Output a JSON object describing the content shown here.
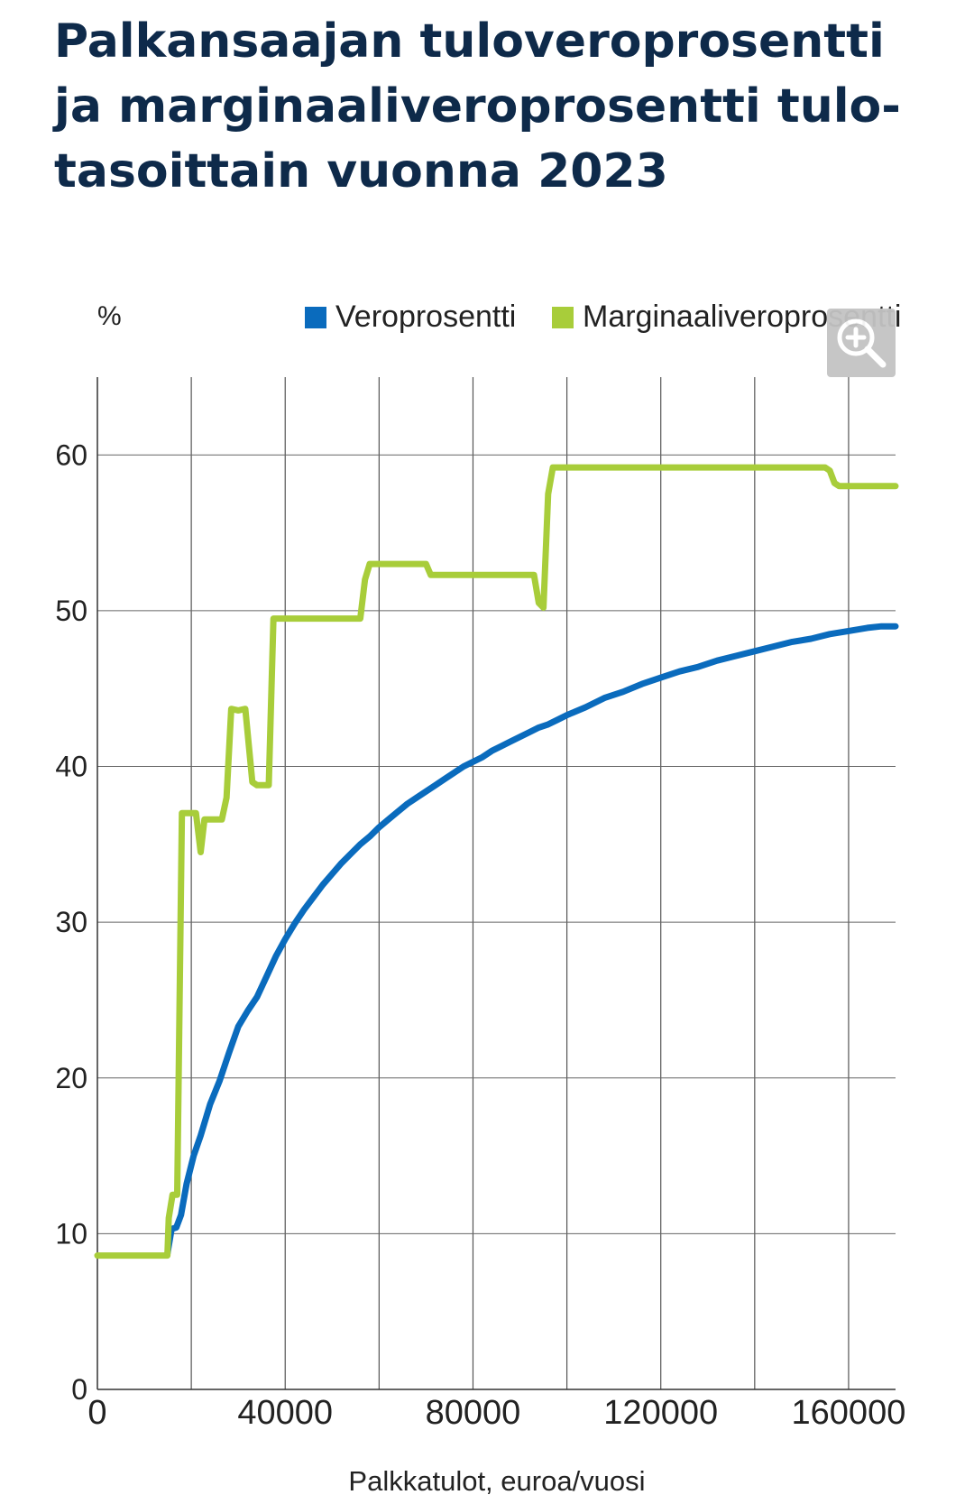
{
  "header": {
    "title": "Palkansaajan tuloveroprosentti ja marginaaliveroprosentti tulo- tasoittain vuonna 2023"
  },
  "chart_data": {
    "type": "line",
    "title": "Palkansaajan tuloveroprosentti ja marginaaliveroprosentti tulo- tasoittain vuonna 2023",
    "xlabel": "Palkkatulot, euroa/vuosi",
    "ylabel": "%",
    "xlim": [
      0,
      170000
    ],
    "ylim": [
      0,
      65
    ],
    "xticks": [
      0,
      40000,
      80000,
      120000,
      160000
    ],
    "yticks": [
      0,
      10,
      20,
      30,
      40,
      50,
      60
    ],
    "grid": true,
    "legend_position": "top-right",
    "series": [
      {
        "name": "Veroprosentti",
        "color": "#0a6bbd",
        "points": [
          [
            14900,
            8.7
          ],
          [
            15800,
            10.3
          ],
          [
            16800,
            10.4
          ],
          [
            17800,
            11.2
          ],
          [
            19000,
            13.2
          ],
          [
            20500,
            15.0
          ],
          [
            22000,
            16.3
          ],
          [
            24000,
            18.3
          ],
          [
            26000,
            19.8
          ],
          [
            28000,
            21.6
          ],
          [
            30000,
            23.3
          ],
          [
            32000,
            24.3
          ],
          [
            34000,
            25.2
          ],
          [
            36000,
            26.5
          ],
          [
            38000,
            27.8
          ],
          [
            40000,
            28.9
          ],
          [
            42000,
            29.9
          ],
          [
            44000,
            30.8
          ],
          [
            46000,
            31.6
          ],
          [
            48000,
            32.4
          ],
          [
            50000,
            33.1
          ],
          [
            52000,
            33.8
          ],
          [
            54000,
            34.4
          ],
          [
            56000,
            35.0
          ],
          [
            58000,
            35.5
          ],
          [
            60000,
            36.1
          ],
          [
            62000,
            36.6
          ],
          [
            64000,
            37.1
          ],
          [
            66000,
            37.6
          ],
          [
            68000,
            38.0
          ],
          [
            70000,
            38.4
          ],
          [
            72000,
            38.8
          ],
          [
            74000,
            39.2
          ],
          [
            76000,
            39.6
          ],
          [
            78000,
            40.0
          ],
          [
            80000,
            40.3
          ],
          [
            82000,
            40.6
          ],
          [
            84000,
            41.0
          ],
          [
            86000,
            41.3
          ],
          [
            88000,
            41.6
          ],
          [
            90000,
            41.9
          ],
          [
            92000,
            42.2
          ],
          [
            94000,
            42.5
          ],
          [
            96000,
            42.7
          ],
          [
            98000,
            43.0
          ],
          [
            100000,
            43.3
          ],
          [
            104000,
            43.8
          ],
          [
            108000,
            44.4
          ],
          [
            112000,
            44.8
          ],
          [
            116000,
            45.3
          ],
          [
            120000,
            45.7
          ],
          [
            124000,
            46.1
          ],
          [
            128000,
            46.4
          ],
          [
            132000,
            46.8
          ],
          [
            136000,
            47.1
          ],
          [
            140000,
            47.4
          ],
          [
            144000,
            47.7
          ],
          [
            148000,
            48.0
          ],
          [
            152000,
            48.2
          ],
          [
            156000,
            48.5
          ],
          [
            160000,
            48.7
          ],
          [
            164000,
            48.9
          ],
          [
            167000,
            49.0
          ],
          [
            170000,
            49.0
          ]
        ]
      },
      {
        "name": "Marginaaliveroprosentti",
        "color": "#a8cd3a",
        "points": [
          [
            0,
            8.6
          ],
          [
            14900,
            8.6
          ],
          [
            15200,
            11.0
          ],
          [
            16000,
            12.5
          ],
          [
            17000,
            12.5
          ],
          [
            18000,
            37.0
          ],
          [
            21000,
            37.0
          ],
          [
            22000,
            34.5
          ],
          [
            22800,
            36.6
          ],
          [
            24000,
            36.6
          ],
          [
            26500,
            36.6
          ],
          [
            27500,
            38.0
          ],
          [
            28500,
            43.7
          ],
          [
            30000,
            43.6
          ],
          [
            31500,
            43.7
          ],
          [
            33000,
            39.0
          ],
          [
            34000,
            38.8
          ],
          [
            36500,
            38.8
          ],
          [
            37500,
            49.5
          ],
          [
            56000,
            49.5
          ],
          [
            57000,
            52.0
          ],
          [
            58000,
            53.0
          ],
          [
            70000,
            53.0
          ],
          [
            71000,
            52.3
          ],
          [
            93000,
            52.3
          ],
          [
            94000,
            50.5
          ],
          [
            95000,
            50.2
          ],
          [
            96000,
            57.5
          ],
          [
            97000,
            59.2
          ],
          [
            155000,
            59.2
          ],
          [
            156000,
            59.0
          ],
          [
            157000,
            58.2
          ],
          [
            158000,
            58.0
          ],
          [
            170000,
            58.0
          ]
        ]
      }
    ]
  }
}
